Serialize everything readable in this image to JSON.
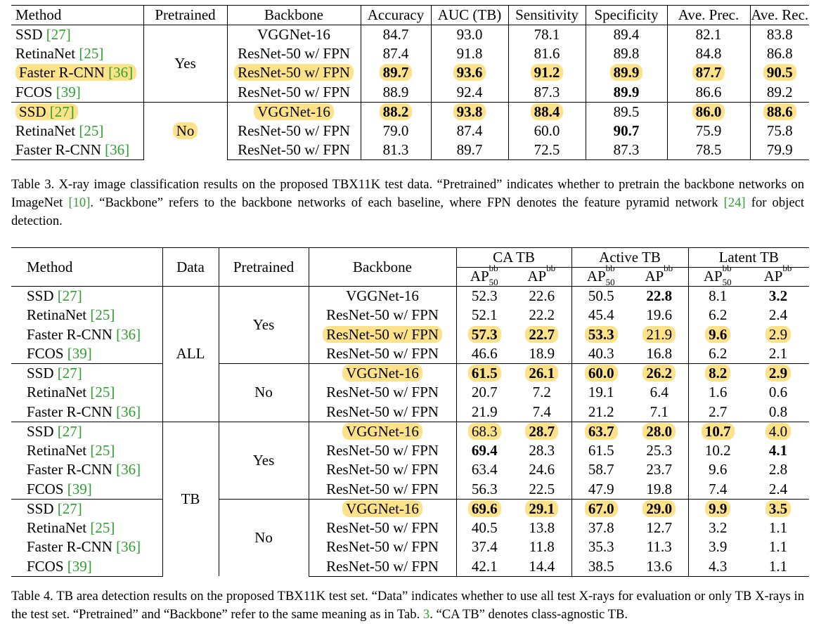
{
  "table3": {
    "headers": [
      "Method",
      "Pretrained",
      "Backbone",
      "Accuracy",
      "AUC (TB)",
      "Sensitivity",
      "Specificity",
      "Ave. Prec.",
      "Ave. Rec."
    ],
    "pretrained_groups": [
      "Yes",
      "No"
    ],
    "rows": [
      {
        "method": "SSD",
        "cite": "[27]",
        "backbone": "VGGNet-16",
        "vals": [
          "84.7",
          "93.0",
          "78.1",
          "89.4",
          "82.1",
          "83.8"
        ]
      },
      {
        "method": "RetinaNet",
        "cite": "[25]",
        "backbone": "ResNet-50 w/ FPN",
        "vals": [
          "87.4",
          "91.8",
          "81.6",
          "89.8",
          "84.8",
          "86.8"
        ]
      },
      {
        "method": "Faster R-CNN",
        "cite": "[36]",
        "backbone": "ResNet-50 w/ FPN",
        "vals": [
          "89.7",
          "93.6",
          "91.2",
          "89.9",
          "87.7",
          "90.5"
        ]
      },
      {
        "method": "FCOS",
        "cite": "[39]",
        "backbone": "ResNet-50 w/ FPN",
        "vals": [
          "88.9",
          "92.4",
          "87.3",
          "89.9",
          "86.6",
          "89.2"
        ]
      },
      {
        "method": "SSD",
        "cite": "[27]",
        "backbone": "VGGNet-16",
        "vals": [
          "88.2",
          "93.8",
          "88.4",
          "89.5",
          "86.0",
          "88.6"
        ]
      },
      {
        "method": "RetinaNet",
        "cite": "[25]",
        "backbone": "ResNet-50 w/ FPN",
        "vals": [
          "79.0",
          "87.4",
          "60.0",
          "90.7",
          "75.9",
          "75.8"
        ]
      },
      {
        "method": "Faster R-CNN",
        "cite": "[36]",
        "backbone": "ResNet-50 w/ FPN",
        "vals": [
          "81.3",
          "89.7",
          "72.5",
          "87.3",
          "78.5",
          "79.9"
        ]
      }
    ],
    "caption": {
      "p1": "Table 3. X-ray image classification results on the proposed TBX11K test data. “Pretrained” indicates whether to pretrain the backbone networks on ImageNet ",
      "c1": "[10]",
      "p2": ". “Backbone” refers to the backbone networks of each baseline, where FPN denotes the feature pyramid network ",
      "c2": "[24]",
      "p3": " for object detection."
    }
  },
  "table4": {
    "headers": {
      "method": "Method",
      "data": "Data",
      "pretrained": "Pretrained",
      "backbone": "Backbone",
      "ca": "CA TB",
      "active": "Active TB",
      "latent": "Latent TB",
      "ap": "AP",
      "sup": "bb",
      "sub": "50"
    },
    "data_groups": [
      "ALL",
      "TB"
    ],
    "pretrained_groups": [
      "Yes",
      "No",
      "Yes",
      "No"
    ],
    "rows": [
      {
        "method": "SSD",
        "cite": "[27]",
        "backbone": "VGGNet-16",
        "vals": [
          "52.3",
          "22.6",
          "50.5",
          "22.8",
          "8.1",
          "3.2"
        ]
      },
      {
        "method": "RetinaNet",
        "cite": "[25]",
        "backbone": "ResNet-50 w/ FPN",
        "vals": [
          "52.1",
          "22.2",
          "45.4",
          "19.6",
          "6.2",
          "2.4"
        ]
      },
      {
        "method": "Faster R-CNN",
        "cite": "[36]",
        "backbone": "ResNet-50 w/ FPN",
        "vals": [
          "57.3",
          "22.7",
          "53.3",
          "21.9",
          "9.6",
          "2.9"
        ]
      },
      {
        "method": "FCOS",
        "cite": "[39]",
        "backbone": "ResNet-50 w/ FPN",
        "vals": [
          "46.6",
          "18.9",
          "40.3",
          "16.8",
          "6.2",
          "2.1"
        ]
      },
      {
        "method": "SSD",
        "cite": "[27]",
        "backbone": "VGGNet-16",
        "vals": [
          "61.5",
          "26.1",
          "60.0",
          "26.2",
          "8.2",
          "2.9"
        ]
      },
      {
        "method": "RetinaNet",
        "cite": "[25]",
        "backbone": "ResNet-50 w/ FPN",
        "vals": [
          "20.7",
          "7.2",
          "19.1",
          "6.4",
          "1.6",
          "0.6"
        ]
      },
      {
        "method": "Faster R-CNN",
        "cite": "[36]",
        "backbone": "ResNet-50 w/ FPN",
        "vals": [
          "21.9",
          "7.4",
          "21.2",
          "7.1",
          "2.7",
          "0.8"
        ]
      },
      {
        "method": "SSD",
        "cite": "[27]",
        "backbone": "VGGNet-16",
        "vals": [
          "68.3",
          "28.7",
          "63.7",
          "28.0",
          "10.7",
          "4.0"
        ]
      },
      {
        "method": "RetinaNet",
        "cite": "[25]",
        "backbone": "ResNet-50 w/ FPN",
        "vals": [
          "69.4",
          "28.3",
          "61.5",
          "25.3",
          "10.2",
          "4.1"
        ]
      },
      {
        "method": "Faster R-CNN",
        "cite": "[36]",
        "backbone": "ResNet-50 w/ FPN",
        "vals": [
          "63.4",
          "24.6",
          "58.7",
          "23.7",
          "9.6",
          "2.8"
        ]
      },
      {
        "method": "FCOS",
        "cite": "[39]",
        "backbone": "ResNet-50 w/ FPN",
        "vals": [
          "56.3",
          "22.5",
          "47.9",
          "19.8",
          "7.4",
          "2.4"
        ]
      },
      {
        "method": "SSD",
        "cite": "[27]",
        "backbone": "VGGNet-16",
        "vals": [
          "69.6",
          "29.1",
          "67.0",
          "29.0",
          "9.9",
          "3.5"
        ]
      },
      {
        "method": "RetinaNet",
        "cite": "[25]",
        "backbone": "ResNet-50 w/ FPN",
        "vals": [
          "40.5",
          "13.8",
          "37.8",
          "12.7",
          "3.2",
          "1.1"
        ]
      },
      {
        "method": "Faster R-CNN",
        "cite": "[36]",
        "backbone": "ResNet-50 w/ FPN",
        "vals": [
          "37.4",
          "11.8",
          "35.3",
          "11.3",
          "3.9",
          "1.1"
        ]
      },
      {
        "method": "FCOS",
        "cite": "[39]",
        "backbone": "ResNet-50 w/ FPN",
        "vals": [
          "42.1",
          "14.4",
          "38.5",
          "13.6",
          "4.3",
          "1.1"
        ]
      }
    ],
    "caption": {
      "p1": "Table 4. TB area detection results on the proposed TBX11K test set. “Data” indicates whether to use all test X-rays for evaluation or only TB X-rays in the test set. “Pretrained” and “Backbone” refer to the same meaning as in Tab. ",
      "c1": "3",
      "p2": ". “CA TB” denotes class-agnostic TB."
    }
  }
}
